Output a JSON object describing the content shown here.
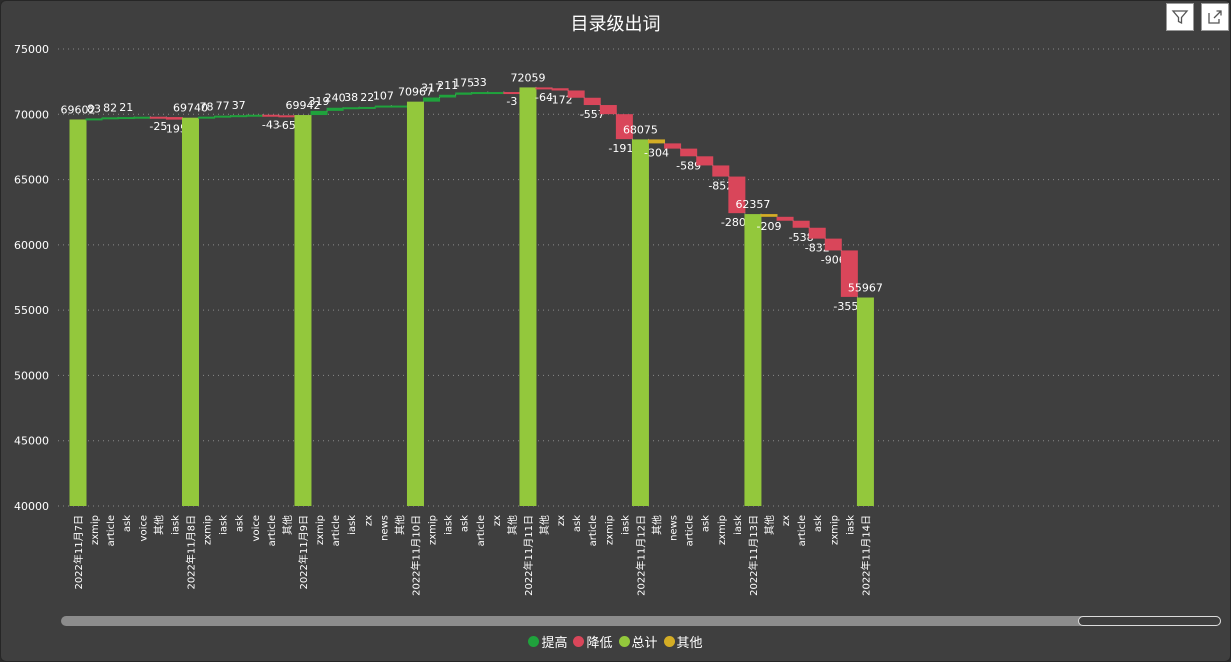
{
  "toolbar": {
    "filter_icon": "filter-icon",
    "export_icon": "export-icon"
  },
  "chart_data": {
    "type": "waterfall",
    "title": "目录级出词",
    "ylim": [
      40000,
      75000
    ],
    "yticks": [
      40000,
      45000,
      50000,
      55000,
      60000,
      65000,
      70000,
      75000
    ],
    "grid": true,
    "legend_position": "bottom-center",
    "colors": {
      "提高": "#1fa23c",
      "降低": "#d9465a",
      "总计": "#93c83c",
      "其他": "#d4ad25"
    },
    "legend": [
      "提高",
      "降低",
      "总计",
      "其他"
    ],
    "bars": [
      {
        "label": "2022年11月7日",
        "value": 69602,
        "kind": "总计"
      },
      {
        "label": "zxmip",
        "value": 83,
        "kind": "提高"
      },
      {
        "label": "article",
        "value": 82,
        "kind": "提高"
      },
      {
        "label": "ask",
        "value": 21,
        "kind": "提高"
      },
      {
        "label": "voice",
        "value": 25,
        "kind": "提高"
      },
      {
        "label": "其他",
        "value": -25,
        "kind": "降低"
      },
      {
        "label": "iask",
        "value": -195,
        "kind": "降低"
      },
      {
        "label": "2022年11月8日",
        "value": 69740,
        "kind": "总计"
      },
      {
        "label": "zxmip",
        "value": 78,
        "kind": "提高"
      },
      {
        "label": "iask",
        "value": 77,
        "kind": "提高"
      },
      {
        "label": "ask",
        "value": 37,
        "kind": "提高"
      },
      {
        "label": "voice",
        "value": 33,
        "kind": "提高"
      },
      {
        "label": "article",
        "value": -43,
        "kind": "降低"
      },
      {
        "label": "其他",
        "value": -65,
        "kind": "降低"
      },
      {
        "label": "2022年11月9日",
        "value": 69942,
        "kind": "总计"
      },
      {
        "label": "zxmip",
        "value": 319,
        "kind": "提高"
      },
      {
        "label": "article",
        "value": 240,
        "kind": "提高"
      },
      {
        "label": "iask",
        "value": 38,
        "kind": "提高"
      },
      {
        "label": "zx",
        "value": 22,
        "kind": "提高"
      },
      {
        "label": "news",
        "value": 107,
        "kind": "提高"
      },
      {
        "label": "其他",
        "value": 0,
        "kind": "提高"
      },
      {
        "label": "2022年11月10日",
        "value": 70967,
        "kind": "总计"
      },
      {
        "label": "zxmip",
        "value": 317,
        "kind": "提高"
      },
      {
        "label": "iask",
        "value": 211,
        "kind": "提高"
      },
      {
        "label": "ask",
        "value": 175,
        "kind": "提高"
      },
      {
        "label": "article",
        "value": 33,
        "kind": "提高"
      },
      {
        "label": "zx",
        "value": 0,
        "kind": "提高"
      },
      {
        "label": "其他",
        "value": -3,
        "kind": "降低"
      },
      {
        "label": "2022年11月11日",
        "value": 72059,
        "kind": "总计"
      },
      {
        "label": "其他",
        "value": -64,
        "kind": "降低"
      },
      {
        "label": "zx",
        "value": -172,
        "kind": "降低"
      },
      {
        "label": "ask",
        "value": -557,
        "kind": "降低"
      },
      {
        "label": "article",
        "value": -557,
        "kind": "降低"
      },
      {
        "label": "zxmip",
        "value": -700,
        "kind": "降低"
      },
      {
        "label": "iask",
        "value": -1911,
        "kind": "降低"
      },
      {
        "label": "2022年11月12日",
        "value": 68075,
        "kind": "总计"
      },
      {
        "label": "其他",
        "value": -304,
        "kind": "其他"
      },
      {
        "label": "news",
        "value": -400,
        "kind": "降低"
      },
      {
        "label": "article",
        "value": -589,
        "kind": "降低"
      },
      {
        "label": "ask",
        "value": -700,
        "kind": "降低"
      },
      {
        "label": "zxmip",
        "value": -852,
        "kind": "降低"
      },
      {
        "label": "iask",
        "value": -2802,
        "kind": "降低"
      },
      {
        "label": "2022年11月13日",
        "value": 62357,
        "kind": "总计"
      },
      {
        "label": "其他",
        "value": -209,
        "kind": "其他"
      },
      {
        "label": "zx",
        "value": -300,
        "kind": "降低"
      },
      {
        "label": "article",
        "value": -538,
        "kind": "降低"
      },
      {
        "label": "ask",
        "value": -832,
        "kind": "降低"
      },
      {
        "label": "zxmip",
        "value": -906,
        "kind": "降低"
      },
      {
        "label": "iask",
        "value": -3558,
        "kind": "降低"
      },
      {
        "label": "2022年11月14日",
        "value": 55967,
        "kind": "总计"
      }
    ],
    "data_labels": [
      "69602",
      "83",
      "82",
      "21",
      "",
      "-25",
      "-195",
      "69740",
      "78",
      "77",
      "37",
      "",
      "-43",
      "-65",
      "69942",
      "319",
      "240",
      "38",
      "22",
      "107",
      "",
      "70967",
      "317",
      "211",
      "175",
      "33",
      "",
      "-3",
      "72059",
      "-64",
      "-172",
      "",
      "-557",
      "",
      "-1911",
      "68075",
      "-304",
      "",
      "-589",
      "",
      "-852",
      "-2802",
      "62357",
      "-209",
      "",
      "-538",
      "-832",
      "-906",
      "-3558",
      "55967"
    ]
  }
}
